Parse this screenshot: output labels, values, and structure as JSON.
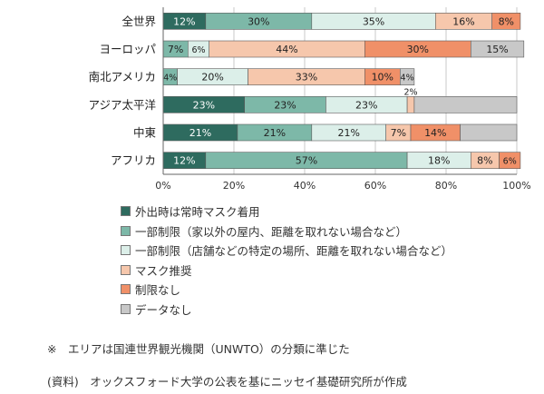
{
  "chart_data": {
    "type": "bar",
    "orientation": "horizontal",
    "stacked": true,
    "categories": [
      "全世界",
      "ヨーロッパ",
      "南北アメリカ",
      "アジア太平洋",
      "中東",
      "アフリカ"
    ],
    "series": [
      {
        "name": "外出時は常時マスク着用",
        "color": "#2e6b5f",
        "text_color": "#ffffff",
        "values": [
          12,
          0,
          0,
          23,
          21,
          12
        ],
        "labels": [
          "12%",
          "",
          "",
          "23%",
          "21%",
          "12%"
        ]
      },
      {
        "name": "一部制限（家以外の屋内、距離を取れない場合など）",
        "color": "#7db8a8",
        "text_color": "#222222",
        "values": [
          30,
          7,
          4,
          23,
          21,
          57
        ],
        "labels": [
          "30%",
          "7%",
          "4%",
          "23%",
          "21%",
          "57%"
        ]
      },
      {
        "name": "一部制限（店舗などの特定の場所、距離を取れない場合など）",
        "color": "#dcefe9",
        "text_color": "#222222",
        "values": [
          35,
          6,
          20,
          23,
          21,
          18
        ],
        "labels": [
          "35%",
          "6%",
          "20%",
          "23%",
          "21%",
          "18%"
        ]
      },
      {
        "name": "マスク推奨",
        "color": "#f6c7ac",
        "text_color": "#222222",
        "values": [
          16,
          44,
          33,
          2,
          7,
          8
        ],
        "labels": [
          "16%",
          "44%",
          "33%",
          "2%",
          "7%",
          "8%"
        ]
      },
      {
        "name": "制限なし",
        "color": "#f09068",
        "text_color": "#222222",
        "values": [
          8,
          30,
          10,
          0,
          14,
          6
        ],
        "labels": [
          "8%",
          "30%",
          "10%",
          "",
          "14%",
          "6%"
        ]
      },
      {
        "name": "データなし",
        "color": "#c8c8c8",
        "text_color": "#222222",
        "values": [
          0,
          15,
          4,
          29,
          16,
          0
        ],
        "labels": [
          "",
          "15%",
          "4%",
          "",
          "",
          ""
        ]
      }
    ],
    "xticks": [
      "0%",
      "20%",
      "40%",
      "60%",
      "80%",
      "100%"
    ],
    "xlim": [
      0,
      100
    ],
    "grid": true,
    "legend_position": "bottom"
  },
  "notes": {
    "area_note": "※　エリアは国連世界観光機関（UNWTO）の分類に準じた",
    "source": "(資料)　オックスフォード大学の公表を基にニッセイ基礎研究所が作成"
  }
}
